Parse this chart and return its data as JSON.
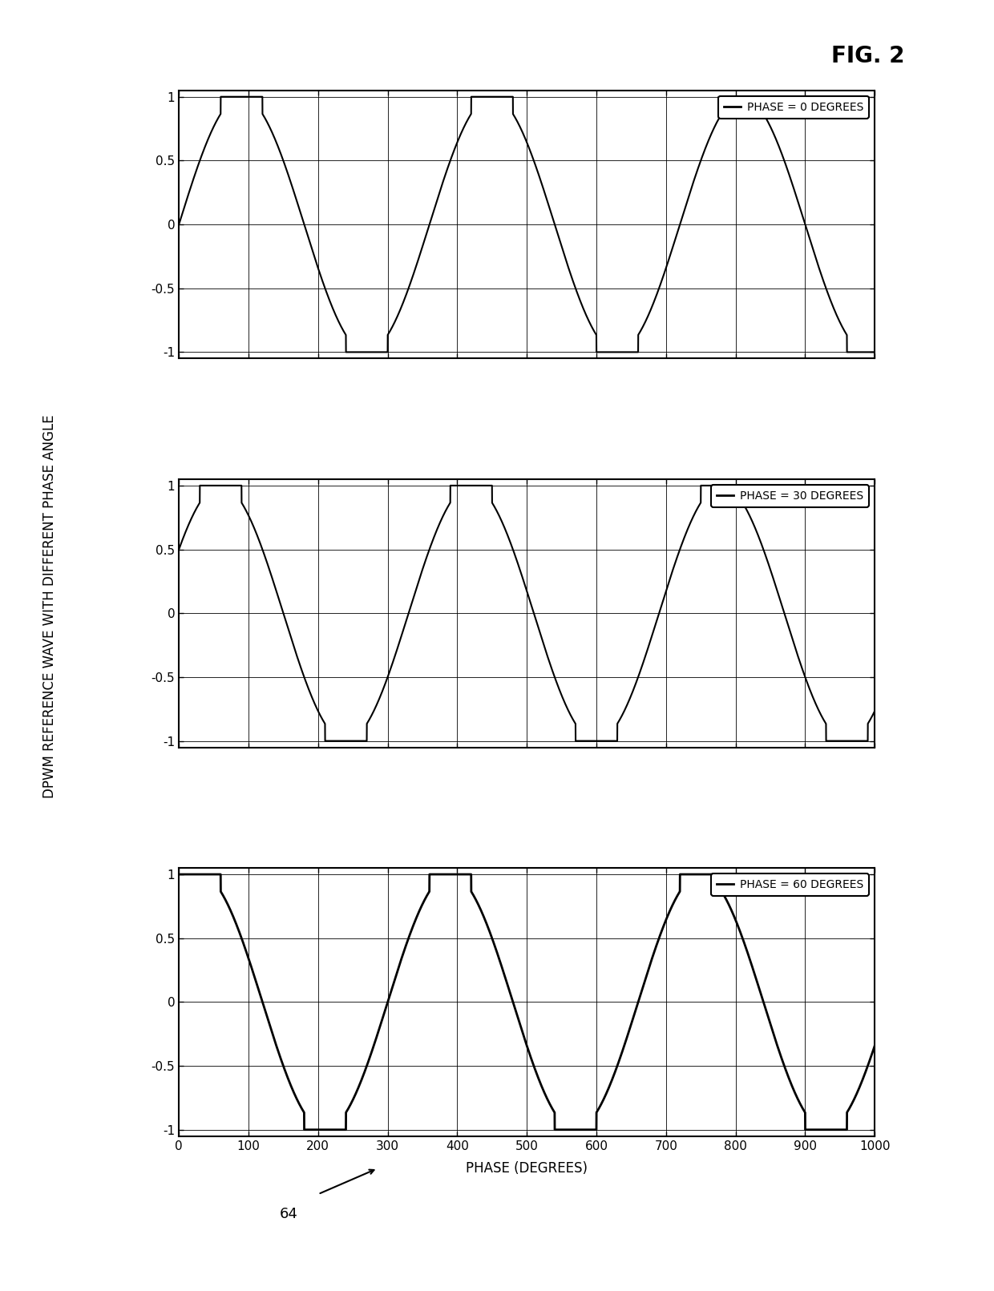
{
  "title": "DPWM REFERENCE WAVE WITH DIFFERENT PHASE ANGLE",
  "xlabel": "PHASE (DEGREES)",
  "phase_labels": [
    "PHASE = 0 DEGREES",
    "PHASE = 30 DEGREES",
    "PHASE = 60 DEGREES"
  ],
  "phase_offsets_deg": [
    0,
    30,
    60
  ],
  "xlim": [
    0,
    1000
  ],
  "ylim": [
    -1.05,
    1.05
  ],
  "xticks": [
    0,
    100,
    200,
    300,
    400,
    500,
    600,
    700,
    800,
    900,
    1000
  ],
  "yticks": [
    -1,
    -0.5,
    0,
    0.5,
    1
  ],
  "ytick_labels": [
    "-1",
    "-0.5",
    "0",
    "0.5",
    "1"
  ],
  "xtick_labels": [
    "0",
    "100",
    "200",
    "300",
    "400",
    "500",
    "600",
    "700",
    "800",
    "900",
    "1000"
  ],
  "line_color": "#000000",
  "background_color": "#ffffff",
  "fig_label": "FIG. 2",
  "callout_label": "64"
}
